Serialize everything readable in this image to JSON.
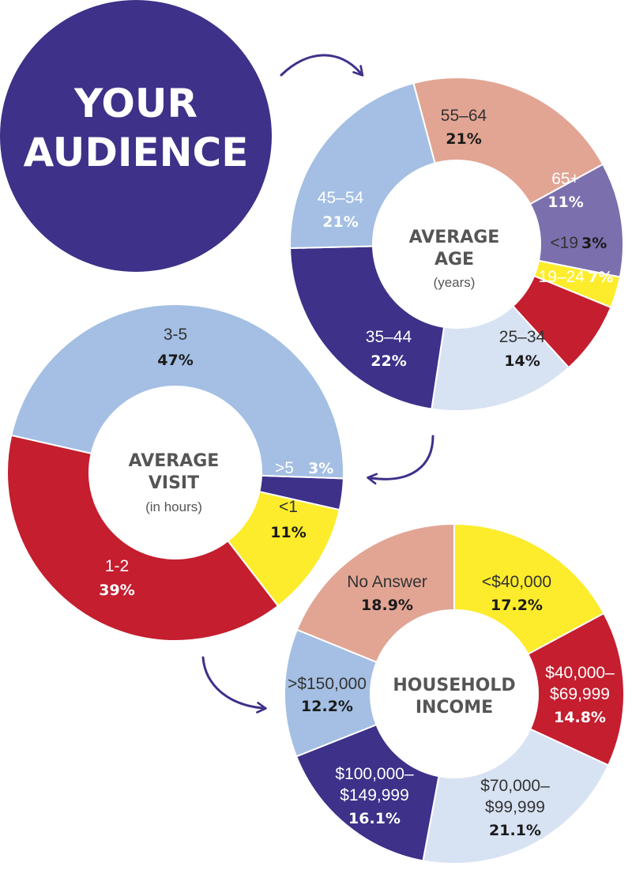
{
  "title": {
    "line1": "YOUR",
    "line2": "AUDIENCE"
  },
  "colors": {
    "navy": "#3d3189",
    "lightblue": "#a4bfe3",
    "paleblue": "#d7e2f3",
    "salmon": "#e2a594",
    "lavender": "#7c6fad",
    "yellow": "#fcec2b",
    "red": "#c41e2f",
    "center": "#555555"
  },
  "chart_data": [
    {
      "type": "pie",
      "title": "AVERAGE AGE",
      "subtitle": "(years)",
      "categories": [
        "55–64",
        "65+",
        "<19",
        "19–24",
        "25–34",
        "35–44",
        "45–54"
      ],
      "values": [
        21,
        11,
        3,
        7,
        14,
        22,
        21
      ],
      "value_labels": [
        "21%",
        "11%",
        "3%",
        "7%",
        "14%",
        "22%",
        "21%"
      ],
      "colors": [
        "salmon",
        "lavender",
        "yellow",
        "red",
        "paleblue",
        "navy",
        "lightblue"
      ]
    },
    {
      "type": "pie",
      "title": "AVERAGE VISIT",
      "subtitle": "(in hours)",
      "categories": [
        ">5",
        "<1",
        "1-2",
        "3-5"
      ],
      "values": [
        3,
        11,
        39,
        47
      ],
      "value_labels": [
        "3%",
        "11%",
        "39%",
        "47%"
      ],
      "colors": [
        "navy",
        "yellow",
        "red",
        "lightblue"
      ]
    },
    {
      "type": "pie",
      "title": "HOUSEHOLD INCOME",
      "subtitle": "",
      "categories": [
        "<$40,000",
        "$40,000–$69,999",
        "$70,000–$99,999",
        "$100,000–$149,999",
        ">$150,000",
        "No Answer"
      ],
      "label_lines": [
        [
          "<$40,000"
        ],
        [
          "$40,000–",
          "$69,999"
        ],
        [
          "$70,000–",
          "$99,999"
        ],
        [
          "$100,000–",
          "$149,999"
        ],
        [
          ">$150,000"
        ],
        [
          "No Answer"
        ]
      ],
      "values": [
        17.2,
        14.8,
        21.1,
        16.1,
        12.2,
        18.9
      ],
      "value_labels": [
        "17.2%",
        "14.8%",
        "21.1%",
        "16.1%",
        "12.2%",
        "18.9%"
      ],
      "colors": [
        "yellow",
        "red",
        "paleblue",
        "navy",
        "lightblue",
        "salmon"
      ]
    }
  ]
}
